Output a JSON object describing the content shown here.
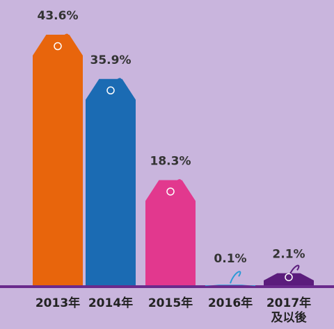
{
  "chart_data": {
    "type": "bar",
    "categories": [
      "2013年",
      "2014年",
      "2015年",
      "2016年",
      "2017年\n及以後"
    ],
    "values": [
      43.6,
      35.9,
      18.3,
      0.1,
      2.1
    ],
    "value_labels": [
      "43.6%",
      "35.9%",
      "18.3%",
      "0.1%",
      "2.1%"
    ],
    "colors": [
      "#e8650c",
      "#1b6bb3",
      "#e2388e",
      "#2b9ad6",
      "#5b1c7c"
    ]
  }
}
